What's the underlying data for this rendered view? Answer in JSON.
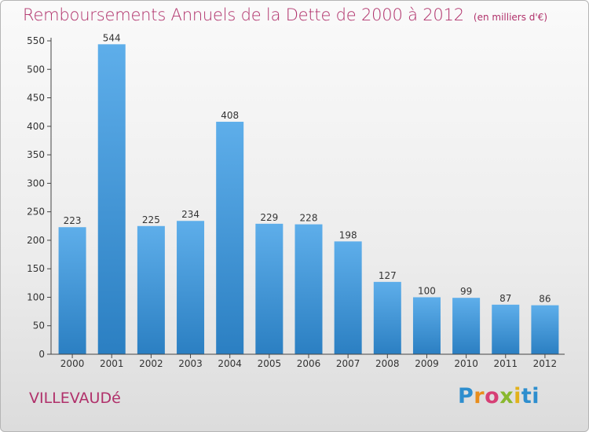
{
  "header": {
    "title": "Remboursements Annuels de la Dette de 2000 à 2012",
    "unit": "(en milliers d'€)"
  },
  "footer": {
    "commune": "VILLEVAUDé",
    "logo": [
      "P",
      "r",
      "o",
      "x",
      "i",
      "ti"
    ]
  },
  "colors": {
    "title": "#b0306a",
    "bar_top": "#5eaeea",
    "bar_bottom": "#2b7fc2"
  },
  "chart_data": {
    "type": "bar",
    "categories": [
      "2000",
      "2001",
      "2002",
      "2003",
      "2004",
      "2005",
      "2006",
      "2007",
      "2008",
      "2009",
      "2010",
      "2011",
      "2012"
    ],
    "values": [
      223,
      544,
      225,
      234,
      408,
      229,
      228,
      198,
      127,
      100,
      99,
      87,
      86
    ],
    "title": "Remboursements Annuels de la Dette de 2000 à 2012",
    "xlabel": "",
    "ylabel": "",
    "ylim": [
      0,
      550
    ],
    "yticks": [
      0,
      50,
      100,
      150,
      200,
      250,
      300,
      350,
      400,
      450,
      500,
      550
    ],
    "grid": false,
    "legend": "none",
    "data_labels": true
  }
}
